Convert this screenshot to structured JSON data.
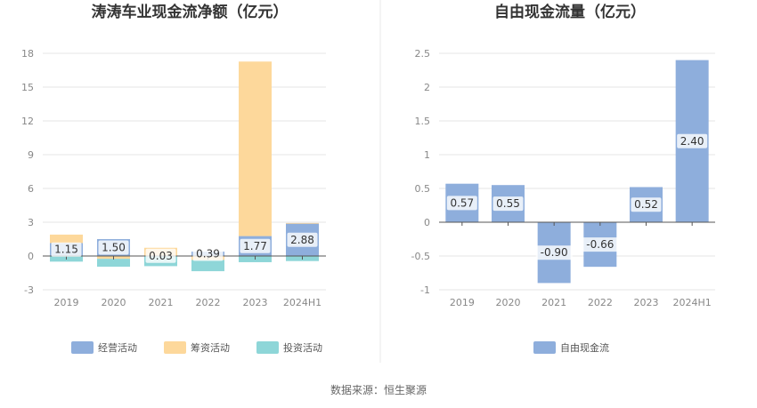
{
  "source": "数据来源：恒生聚源",
  "chart_data": [
    {
      "type": "bar",
      "stacked": true,
      "title": "涛涛车业现金流净额（亿元）",
      "categories": [
        "2019",
        "2020",
        "2021",
        "2022",
        "2023",
        "2024H1"
      ],
      "series": [
        {
          "name": "经营活动",
          "color": "#8eaedc",
          "values": [
            1.15,
            1.5,
            0.03,
            0.39,
            1.77,
            2.88
          ]
        },
        {
          "name": "筹资活动",
          "color": "#fdd89b",
          "values": [
            0.75,
            -0.25,
            0.7,
            -0.35,
            15.5,
            0.05
          ]
        },
        {
          "name": "投资活动",
          "color": "#8ed6d8",
          "values": [
            -0.5,
            -0.7,
            -0.9,
            -1.0,
            -0.55,
            -0.45
          ]
        }
      ],
      "data_labels": [
        "1.15",
        "1.50",
        "0.03",
        "0.39",
        "1.77",
        "2.88"
      ],
      "yticks": [
        "18",
        "15",
        "12",
        "9",
        "6",
        "3",
        "0",
        "-3"
      ],
      "ylim": [
        -3,
        18
      ],
      "grid": true,
      "legend_position": "bottom"
    },
    {
      "type": "bar",
      "title": "自由现金流量（亿元）",
      "categories": [
        "2019",
        "2020",
        "2021",
        "2022",
        "2023",
        "2024H1"
      ],
      "series": [
        {
          "name": "自由现金流",
          "color": "#8eaedc",
          "values": [
            0.57,
            0.55,
            -0.9,
            -0.66,
            0.52,
            2.4
          ]
        }
      ],
      "data_labels": [
        "0.57",
        "0.55",
        "-0.90",
        "-0.66",
        "0.52",
        "2.40"
      ],
      "yticks": [
        "2.5",
        "2",
        "1.5",
        "1",
        "0.5",
        "0",
        "-0.5",
        "-1"
      ],
      "ylim": [
        -1,
        2.5
      ],
      "grid": true,
      "legend_position": "bottom"
    }
  ]
}
